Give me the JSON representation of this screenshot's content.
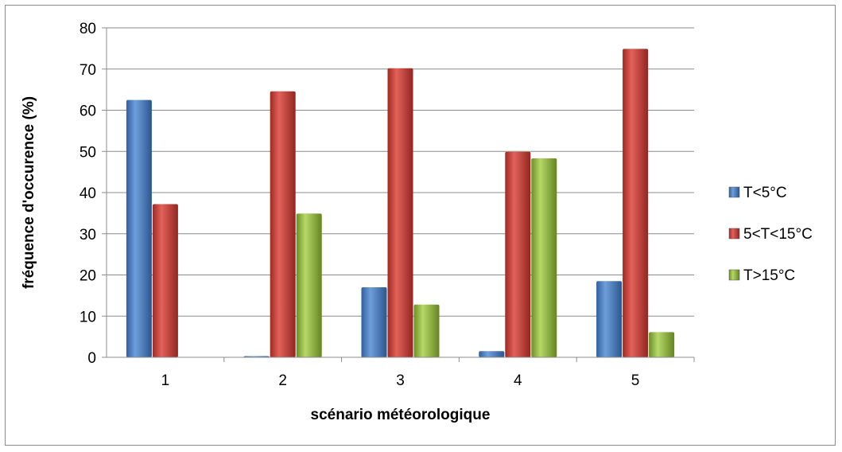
{
  "chart_data": {
    "type": "bar",
    "title": "",
    "xlabel": "scénario météorologique",
    "ylabel": "fréquence d'occurence (%)",
    "ylim": [
      0,
      80
    ],
    "yticks": [
      0,
      10,
      20,
      30,
      40,
      50,
      60,
      70,
      80
    ],
    "categories": [
      "1",
      "2",
      "3",
      "4",
      "5"
    ],
    "series": [
      {
        "name": "T<5°C",
        "color": "#4a7fc1",
        "values": [
          62.5,
          0.3,
          17,
          1.5,
          18.5
        ]
      },
      {
        "name": "5<T<15°C",
        "color": "#c0392b",
        "values": [
          37.2,
          64.6,
          70.2,
          49.9,
          74.9
        ]
      },
      {
        "name": "T>15°C",
        "color": "#8db33a",
        "values": [
          0,
          34.9,
          12.8,
          48.3,
          6.1
        ]
      }
    ],
    "grid": true,
    "legend_position": "right"
  }
}
